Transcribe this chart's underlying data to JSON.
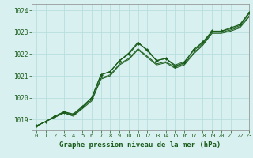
{
  "title": "Graphe pression niveau de la mer (hPa)",
  "bg_color": "#d8f0f0",
  "grid_color": "#b8dede",
  "line_color": "#1a5c1a",
  "xlim": [
    -0.5,
    23
  ],
  "ylim": [
    1018.5,
    1024.3
  ],
  "yticks": [
    1019,
    1020,
    1021,
    1022,
    1023,
    1024
  ],
  "xticks": [
    0,
    1,
    2,
    3,
    4,
    5,
    6,
    7,
    8,
    9,
    10,
    11,
    12,
    13,
    14,
    15,
    16,
    17,
    18,
    19,
    20,
    21,
    22,
    23
  ],
  "series": [
    [
      1018.7,
      1018.9,
      1019.15,
      1019.35,
      1019.25,
      1019.6,
      1020.0,
      1021.05,
      1021.2,
      1021.7,
      1022.0,
      1022.5,
      1022.2,
      1021.7,
      1021.8,
      1021.45,
      1021.6,
      1022.2,
      1022.55,
      1023.05,
      1023.05,
      1023.2,
      1023.35,
      1023.9
    ],
    [
      1018.7,
      1018.9,
      1019.15,
      1019.35,
      1019.2,
      1019.55,
      1019.9,
      1020.9,
      1021.05,
      1021.55,
      1021.8,
      1022.25,
      1021.9,
      1021.55,
      1021.65,
      1021.4,
      1021.55,
      1022.05,
      1022.45,
      1023.0,
      1023.0,
      1023.1,
      1023.25,
      1023.75
    ],
    [
      1018.7,
      1018.9,
      1019.1,
      1019.3,
      1019.15,
      1019.5,
      1019.85,
      1020.85,
      1021.0,
      1021.5,
      1021.75,
      1022.2,
      1021.85,
      1021.5,
      1021.6,
      1021.35,
      1021.5,
      1022.0,
      1022.4,
      1022.95,
      1022.95,
      1023.05,
      1023.2,
      1023.7
    ],
    [
      1018.7,
      1018.9,
      1019.1,
      1019.3,
      1019.2,
      1019.55,
      1020.0,
      1021.05,
      1021.2,
      1021.7,
      1022.05,
      1022.55,
      1022.15,
      1021.7,
      1021.8,
      1021.5,
      1021.65,
      1022.15,
      1022.5,
      1023.05,
      1023.05,
      1023.15,
      1023.3,
      1023.85
    ]
  ]
}
